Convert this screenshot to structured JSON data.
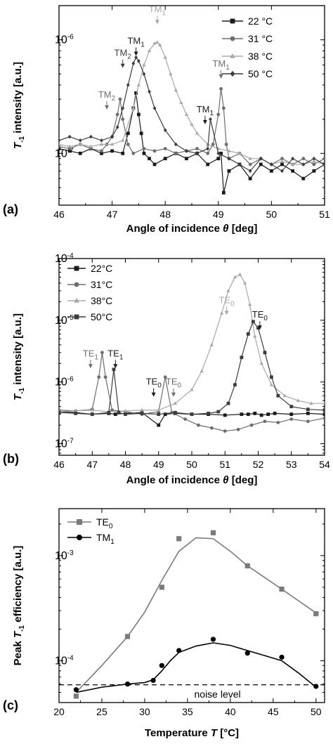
{
  "chart_data": [
    {
      "panel": "(a)",
      "type": "line",
      "xlabel": "Angle of incidence θ [deg]",
      "ylabel": "T-1 intensity [a.u.]",
      "xlim": [
        46,
        51
      ],
      "ylim": [
        3.5e-08,
        2e-06
      ],
      "yscale": "log",
      "xticks": [
        46,
        47,
        48,
        49,
        50,
        51
      ],
      "yticks": [
        {
          "v": 1e-07,
          "label": "10-7"
        },
        {
          "v": 1e-06,
          "label": "10-6"
        }
      ],
      "legend_placement": "top-right",
      "series": [
        {
          "name": "22 °C",
          "color": "#1a1a1a",
          "marker": "square",
          "x": [
            46.0,
            46.2,
            46.4,
            46.6,
            46.8,
            47.0,
            47.2,
            47.3,
            47.4,
            47.45,
            47.5,
            47.55,
            47.6,
            47.7,
            47.8,
            48.0,
            48.2,
            48.4,
            48.6,
            48.8,
            49.0,
            49.05,
            49.1,
            49.2,
            49.4,
            49.6,
            49.8,
            50.0,
            50.2,
            50.4,
            50.6,
            50.8,
            51.0
          ],
          "y": [
            1.1e-07,
            1.05e-07,
            1e-07,
            1.1e-07,
            1e-07,
            1.05e-07,
            1e-07,
            1.5e-07,
            2.5e-07,
            3.4e-07,
            2.2e-07,
            1.5e-07,
            1e-07,
            9e-08,
            8e-08,
            9e-08,
            1e-07,
            9e-08,
            1e-07,
            8e-08,
            9e-08,
            1e-07,
            4.5e-08,
            7e-08,
            8e-08,
            6e-08,
            8e-08,
            7e-08,
            8e-08,
            7e-08,
            6e-08,
            7e-08,
            8e-08
          ]
        },
        {
          "name": "31 °C",
          "color": "#6e6e6e",
          "marker": "circle",
          "x": [
            46.0,
            46.2,
            46.4,
            46.6,
            46.8,
            46.9,
            47.0,
            47.1,
            47.15,
            47.2,
            47.3,
            47.4,
            47.6,
            47.8,
            48.0,
            48.2,
            48.4,
            48.6,
            48.8,
            48.9,
            49.0,
            49.05,
            49.1,
            49.15,
            49.2,
            49.4,
            49.6,
            49.8,
            50.0,
            50.2,
            50.4,
            50.6,
            50.8,
            51.0
          ],
          "y": [
            1.15e-07,
            1.1e-07,
            1.2e-07,
            1.1e-07,
            1.05e-07,
            1.2e-07,
            1.4e-07,
            2.2e-07,
            3e-07,
            2e-07,
            1.2e-07,
            1e-07,
            1.1e-07,
            1.05e-07,
            1.1e-07,
            1e-07,
            1.05e-07,
            1.1e-07,
            1e-07,
            1.2e-07,
            2.2e-07,
            3.7e-07,
            2.5e-07,
            1.2e-07,
            9e-08,
            1e-07,
            8e-08,
            9e-08,
            8e-08,
            9e-08,
            8e-08,
            9e-08,
            8e-08,
            9e-08
          ]
        },
        {
          "name": "38 °C",
          "color": "#a8a8a8",
          "marker": "triangle",
          "x": [
            46.0,
            46.2,
            46.4,
            46.6,
            46.8,
            47.0,
            47.2,
            47.4,
            47.5,
            47.6,
            47.7,
            47.8,
            47.85,
            47.9,
            48.0,
            48.1,
            48.2,
            48.3,
            48.4,
            48.5,
            48.6,
            48.8,
            49.0,
            49.2,
            49.4,
            49.6,
            49.8,
            50.0,
            50.2,
            50.4,
            50.6,
            50.8,
            51.0
          ],
          "y": [
            1.2e-07,
            1.15e-07,
            1.2e-07,
            1.15e-07,
            1.2e-07,
            1.2e-07,
            1.3e-07,
            2.5e-07,
            4e-07,
            6e-07,
            8e-07,
            9.3e-07,
            9.5e-07,
            9e-07,
            7e-07,
            5e-07,
            3.6e-07,
            2.8e-07,
            2.2e-07,
            1.8e-07,
            1.5e-07,
            1.2e-07,
            1.1e-07,
            1.05e-07,
            1e-07,
            9e-08,
            9e-08,
            8e-08,
            8.5e-08,
            8e-08,
            8e-08,
            8.5e-08,
            8e-08
          ]
        },
        {
          "name": "50 °C",
          "color": "#3c3c3c",
          "marker": "diamond",
          "x": [
            46.0,
            46.2,
            46.4,
            46.6,
            46.8,
            47.0,
            47.1,
            47.2,
            47.3,
            47.4,
            47.45,
            47.5,
            47.6,
            47.7,
            47.8,
            48.0,
            48.2,
            48.4,
            48.6,
            48.8,
            48.85,
            49.0,
            49.2,
            49.4,
            49.6,
            49.8,
            50.0,
            50.2,
            50.4,
            50.6,
            50.8,
            51.0
          ],
          "y": [
            1.3e-07,
            1.4e-07,
            1.3e-07,
            1.4e-07,
            1.3e-07,
            1.4e-07,
            1.7e-07,
            2.5e-07,
            4e-07,
            6.2e-07,
            7e-07,
            6.5e-07,
            5e-07,
            3.5e-07,
            2.5e-07,
            1.6e-07,
            1.2e-07,
            1.05e-07,
            1e-07,
            1.1e-07,
            2e-07,
            1e-07,
            9e-08,
            8e-08,
            7e-08,
            9e-08,
            8e-08,
            7e-08,
            9e-08,
            8e-08,
            9e-08,
            8e-08
          ]
        }
      ],
      "annotations": [
        {
          "text": "TM",
          "sub": "1",
          "x": 47.85,
          "y": 1.75e-06,
          "color": "#a8a8a8"
        },
        {
          "text": "TM",
          "sub": "1",
          "x": 47.45,
          "y": 9.2e-07,
          "color": "#1a1a1a"
        },
        {
          "text": "TM",
          "sub": "2",
          "x": 47.2,
          "y": 7.2e-07,
          "color": "#3c3c3c"
        },
        {
          "text": "TM",
          "sub": "2",
          "x": 46.9,
          "y": 3.1e-07,
          "color": "#6e6e6e"
        },
        {
          "text": "TM",
          "sub": "1",
          "x": 49.05,
          "y": 5.8e-07,
          "color": "#6e6e6e"
        },
        {
          "text": "TM",
          "sub": "1",
          "x": 48.75,
          "y": 2.3e-07,
          "color": "#1a1a1a"
        }
      ]
    },
    {
      "panel": "(b)",
      "type": "line",
      "xlabel": "Angle of incidence θ [deg]",
      "ylabel": "T-1 intensity [a.u.]",
      "xlim": [
        46,
        54
      ],
      "ylim": [
        6.5e-08,
        0.0001
      ],
      "yscale": "log",
      "xticks": [
        46,
        47,
        48,
        49,
        50,
        51,
        52,
        53,
        54
      ],
      "yticks": [
        {
          "v": 1e-07,
          "label": "10-7"
        },
        {
          "v": 1e-06,
          "label": "10-6"
        },
        {
          "v": 1e-05,
          "label": "10-5"
        },
        {
          "v": 0.0001,
          "label": "10-4"
        }
      ],
      "legend_placement": "top-left",
      "series": [
        {
          "name": "22°C",
          "color": "#1a1a1a",
          "marker": "square",
          "x": [
            46.0,
            46.5,
            47.0,
            47.5,
            47.7,
            48.0,
            48.5,
            49.0,
            49.2,
            49.5,
            50.0,
            50.5,
            51.0,
            51.5,
            51.7,
            51.9,
            52.1,
            52.3,
            52.5,
            53.0,
            53.5,
            54.0
          ],
          "y": [
            3.3e-07,
            3.2e-07,
            3e-07,
            3.1e-07,
            3e-07,
            3.1e-07,
            3.2e-07,
            2e-07,
            3e-07,
            3.1e-07,
            3e-07,
            3e-07,
            2.9e-07,
            3e-07,
            3e-07,
            3.1e-07,
            2.9e-07,
            3e-07,
            3.1e-07,
            3e-07,
            3.1e-07,
            3e-07
          ]
        },
        {
          "name": "31°C",
          "color": "#6e6e6e",
          "marker": "circle",
          "x": [
            46.0,
            46.5,
            47.0,
            47.2,
            47.3,
            47.4,
            47.6,
            48.0,
            48.5,
            49.0,
            49.2,
            49.4,
            49.8,
            50.2,
            50.6,
            51.0,
            51.4,
            51.8,
            52.2,
            52.6,
            53.0,
            53.5,
            54.0
          ],
          "y": [
            3.5e-07,
            3.4e-07,
            3.6e-07,
            1.2e-06,
            3e-06,
            1.2e-06,
            3.5e-07,
            3.3e-07,
            3e-07,
            3.3e-07,
            1.2e-06,
            3.2e-07,
            2.5e-07,
            2e-07,
            1.8e-07,
            1.6e-07,
            1.7e-07,
            2e-07,
            2.3e-07,
            2.2e-07,
            2.5e-07,
            2.3e-07,
            2.6e-07
          ]
        },
        {
          "name": "38°C",
          "color": "#a8a8a8",
          "marker": "triangle",
          "x": [
            46.0,
            46.5,
            47.0,
            47.5,
            48.0,
            48.5,
            49.0,
            49.5,
            50.0,
            50.3,
            50.6,
            50.9,
            51.1,
            51.3,
            51.45,
            51.6,
            51.75,
            51.9,
            52.1,
            52.4,
            52.8,
            53.2,
            53.6,
            54.0
          ],
          "y": [
            3.3e-07,
            3.4e-07,
            3.5e-07,
            3.3e-07,
            3.4e-07,
            3.5e-07,
            3.5e-07,
            4.5e-07,
            7.5e-07,
            1.5e-06,
            4e-06,
            1.3e-05,
            3e-05,
            5e-05,
            5.5e-05,
            4e-05,
            1.8e-05,
            5.5e-06,
            2e-06,
            9e-07,
            6e-07,
            5e-07,
            4.5e-07,
            4.5e-07
          ]
        },
        {
          "name": "50°C",
          "color": "#3c3c3c",
          "marker": "square",
          "x": [
            46.0,
            46.5,
            47.0,
            47.5,
            47.65,
            47.8,
            48.0,
            48.5,
            49.0,
            49.5,
            50.0,
            50.5,
            50.8,
            51.1,
            51.3,
            51.5,
            51.7,
            51.85,
            52.0,
            52.2,
            52.4,
            52.6,
            53.0,
            53.5,
            54.0
          ],
          "y": [
            3.2e-07,
            3.1e-07,
            3e-07,
            3.2e-07,
            1.6e-06,
            3.2e-07,
            3e-07,
            3.1e-07,
            3e-07,
            3.2e-07,
            3e-07,
            3.1e-07,
            3.3e-07,
            4.5e-07,
            9e-07,
            2.5e-06,
            6e-06,
            9.5e-06,
            7.5e-06,
            3e-06,
            1.2e-06,
            6e-07,
            4e-07,
            3.6e-07,
            3.5e-07
          ]
        }
      ],
      "annotations": [
        {
          "text": "TE",
          "sub": "0",
          "x": 51.05,
          "y": 1.9e-05,
          "color": "#a8a8a8"
        },
        {
          "text": "TE",
          "sub": "0",
          "x": 52.05,
          "y": 1.1e-05,
          "color": "#1a1a1a"
        },
        {
          "text": "TE",
          "sub": "1",
          "x": 46.95,
          "y": 2.6e-06,
          "color": "#6e6e6e"
        },
        {
          "text": "TE",
          "sub": "1",
          "x": 47.7,
          "y": 2.6e-06,
          "color": "#1a1a1a"
        },
        {
          "text": "TE",
          "sub": "0",
          "x": 48.85,
          "y": 9e-07,
          "color": "#1a1a1a"
        },
        {
          "text": "TE",
          "sub": "0",
          "x": 49.45,
          "y": 9e-07,
          "color": "#6e6e6e"
        }
      ]
    },
    {
      "panel": "(c)",
      "type": "scatter",
      "xlabel": "Temperature T [°C]",
      "ylabel": "Peak T-1 efficiency [a.u.]",
      "xlim": [
        20,
        51
      ],
      "ylim": [
        4e-05,
        0.0028
      ],
      "yscale": "log",
      "xticks": [
        20,
        25,
        30,
        35,
        40,
        45,
        50
      ],
      "yticks": [
        {
          "v": 0.0001,
          "label": "10-4"
        },
        {
          "v": 0.001,
          "label": "10-3"
        }
      ],
      "legend_placement": "top-left",
      "series": [
        {
          "name": "TE0",
          "color": "#7a7a7a",
          "marker": "square",
          "x": [
            22,
            28,
            32,
            34,
            38,
            42,
            46,
            50
          ],
          "y": [
            4.6e-05,
            0.00017,
            0.0005,
            0.00145,
            0.00165,
            0.0008,
            0.00048,
            0.00028
          ],
          "fit_x": [
            22,
            25,
            28,
            30,
            32,
            34,
            36,
            38,
            40,
            42,
            44,
            46,
            48,
            50
          ],
          "fit_y": [
            5e-05,
            9e-05,
            0.00017,
            0.00029,
            0.00058,
            0.0011,
            0.00148,
            0.00145,
            0.0011,
            0.0008,
            0.00062,
            0.00048,
            0.00037,
            0.000285
          ]
        },
        {
          "name": "TM1",
          "color": "#000000",
          "marker": "circle",
          "x": [
            22,
            28,
            31,
            32,
            34,
            38,
            42,
            46,
            50
          ],
          "y": [
            5.3e-05,
            6e-05,
            6.5e-05,
            9e-05,
            0.000125,
            0.00016,
            0.000118,
            0.000108,
            5.7e-05
          ],
          "fit_x": [
            22,
            25,
            28,
            30,
            31,
            32,
            33,
            34,
            36,
            38,
            40,
            42,
            44,
            46,
            48,
            50
          ],
          "fit_y": [
            5e-05,
            5.6e-05,
            6e-05,
            6.2e-05,
            6.6e-05,
            8e-05,
            0.0001,
            0.00012,
            0.000138,
            0.000148,
            0.00014,
            0.000125,
            0.000112,
            0.0001,
            7.6e-05,
            5.6e-05
          ]
        }
      ],
      "noise_level": {
        "y": 5.9e-05,
        "label": "noise level"
      }
    }
  ],
  "panel_labels": [
    "(a)",
    "(b)",
    "(c)"
  ]
}
